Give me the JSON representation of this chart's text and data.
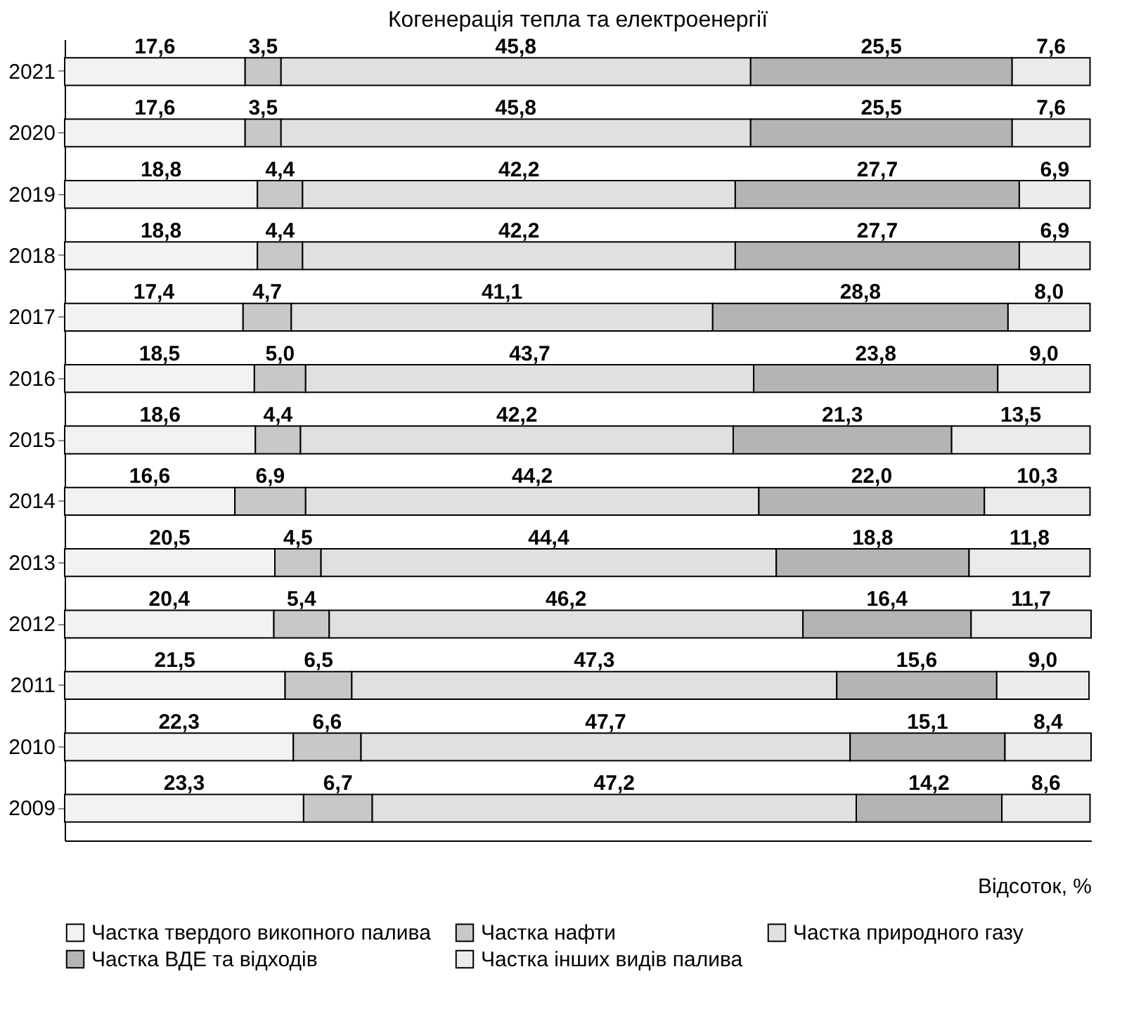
{
  "chart_data": {
    "type": "bar",
    "orientation": "horizontal",
    "stacked": true,
    "title": "Когенерація тепла та електроенергії",
    "xlabel": "Відсоток, %",
    "tick_labels": "y",
    "grid": false,
    "legend": "bottom",
    "categories": [
      "2021",
      "2020",
      "2019",
      "2018",
      "2017",
      "2016",
      "2015",
      "2014",
      "2013",
      "2012",
      "2011",
      "2010",
      "2009"
    ],
    "series": [
      {
        "name": "Частка твердого викопного палива",
        "color": "#f2f2f2",
        "values": [
          17.6,
          17.6,
          18.8,
          18.8,
          17.4,
          18.5,
          18.6,
          16.6,
          20.5,
          20.4,
          21.5,
          22.3,
          23.3
        ],
        "value_labels": [
          "17,6",
          "17,6",
          "18,8",
          "18,8",
          "17,4",
          "18,5",
          "18,6",
          "16,6",
          "20,5",
          "20,4",
          "21,5",
          "22,3",
          "23,3"
        ]
      },
      {
        "name": "Частка нафти",
        "color": "#c8c8c8",
        "values": [
          3.5,
          3.5,
          4.4,
          4.4,
          4.7,
          5.0,
          4.4,
          6.9,
          4.5,
          5.4,
          6.5,
          6.6,
          6.7
        ],
        "value_labels": [
          "3,5",
          "3,5",
          "4,4",
          "4,4",
          "4,7",
          "5,0",
          "4,4",
          "6,9",
          "4,5",
          "5,4",
          "6,5",
          "6,6",
          "6,7"
        ]
      },
      {
        "name": "Частка природного газу",
        "color": "#e0e0e0",
        "values": [
          45.8,
          45.8,
          42.2,
          42.2,
          41.1,
          43.7,
          42.2,
          44.2,
          44.4,
          46.2,
          47.3,
          47.7,
          47.2
        ],
        "value_labels": [
          "45,8",
          "45,8",
          "42,2",
          "42,2",
          "41,1",
          "43,7",
          "42,2",
          "44,2",
          "44,4",
          "46,2",
          "47,3",
          "47,7",
          "47,2"
        ]
      },
      {
        "name": "Частка ВДЕ та відходів",
        "color": "#b4b4b4",
        "values": [
          25.5,
          25.5,
          27.7,
          27.7,
          28.8,
          23.8,
          21.3,
          22.0,
          18.8,
          16.4,
          15.6,
          15.1,
          14.2
        ],
        "value_labels": [
          "25,5",
          "25,5",
          "27,7",
          "27,7",
          "28,8",
          "23,8",
          "21,3",
          "22,0",
          "18,8",
          "16,4",
          "15,6",
          "15,1",
          "14,2"
        ]
      },
      {
        "name": "Частка інших видів палива",
        "color": "#ebebeb",
        "values": [
          7.6,
          7.6,
          6.9,
          6.9,
          8.0,
          9.0,
          13.5,
          10.3,
          11.8,
          11.7,
          9.0,
          8.4,
          8.6
        ],
        "value_labels": [
          "7,6",
          "7,6",
          "6,9",
          "6,9",
          "8,0",
          "9,0",
          "13,5",
          "10,3",
          "11,8",
          "11,7",
          "9,0",
          "8,4",
          "8,6"
        ]
      }
    ]
  }
}
